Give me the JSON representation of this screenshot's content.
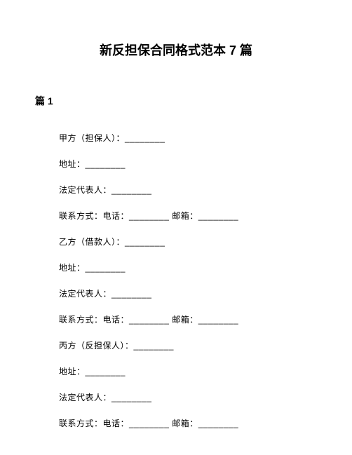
{
  "title": {
    "text": "新反担保合同格式范本 7 篇",
    "fontsize": 18,
    "fontweight": "bold",
    "color": "#000000"
  },
  "section": {
    "heading": "篇 1",
    "fontsize": 14,
    "fontweight": "bold",
    "color": "#000000"
  },
  "body": {
    "fontsize": 12,
    "color": "#000000",
    "line_spacing": 20
  },
  "lines": [
    "甲方（担保人）：________",
    "地址：________",
    "法定代表人：________",
    "联系方式：电话：________ 邮箱：________",
    "乙方（借款人）：________",
    "地址：________",
    "法定代表人：________",
    "联系方式：电话：________ 邮箱：________",
    "丙方（反担保人）：________",
    "地址：________",
    "法定代表人：________",
    "联系方式：电话：________ 邮箱：________"
  ],
  "page_bg": "#ffffff"
}
